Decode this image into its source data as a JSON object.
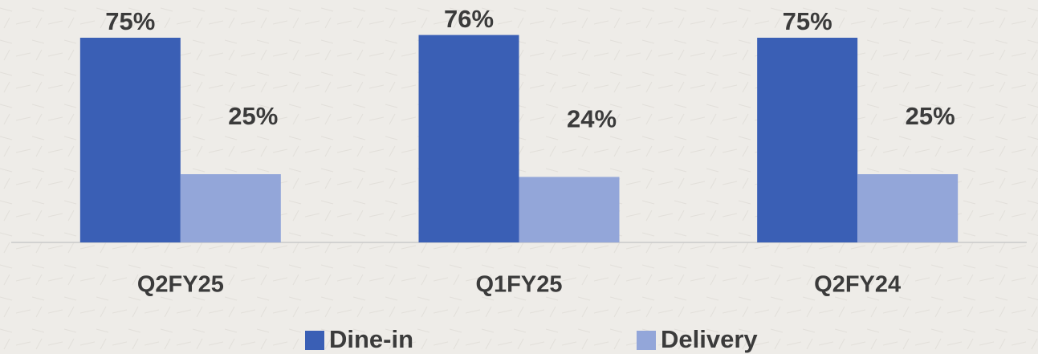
{
  "chart_data": {
    "type": "bar",
    "categories": [
      "Q2FY25",
      "Q1FY25",
      "Q2FY24"
    ],
    "series": [
      {
        "name": "Dine-in",
        "color": "#3a5fb5",
        "values": [
          75,
          76,
          75
        ],
        "value_labels": [
          "75%",
          "76%",
          "75%"
        ]
      },
      {
        "name": "Delivery",
        "color": "#93a6d9",
        "values": [
          25,
          24,
          25
        ],
        "value_labels": [
          "25%",
          "24%",
          "25%"
        ]
      }
    ],
    "legend": "bottom"
  }
}
